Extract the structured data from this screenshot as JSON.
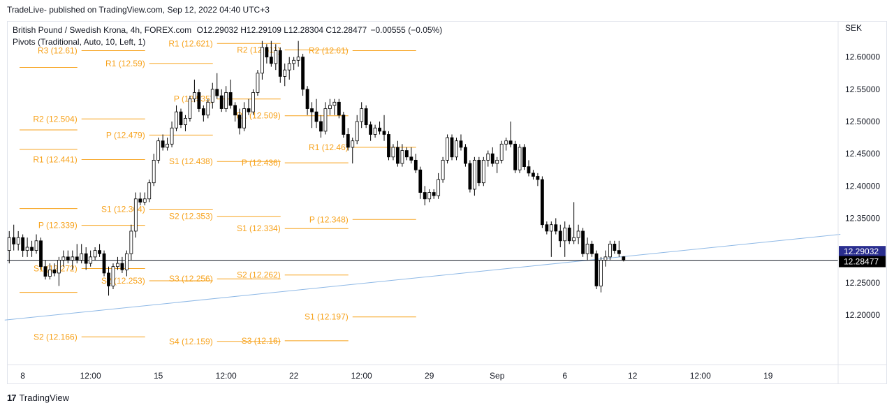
{
  "header": {
    "published": "TradeLive- published on TradingView.com, Sep 12, 2022 04:40 UTC+3"
  },
  "legend": {
    "symbol": "British Pound / Swedish Krona, 4h, FOREX.com",
    "open_label": "O",
    "open": "12.29032",
    "high_label": "H",
    "high": "12.29109",
    "low_label": "L",
    "low": "12.28304",
    "close_label": "C",
    "close": "12.28477",
    "change": "−0.00555 (−0.05%)",
    "indicator": "Pivots (Traditional, Auto, 10, Left, 1)"
  },
  "footer": {
    "brand": "TradingView",
    "brand_mark": "17"
  },
  "colors": {
    "pivot": "#f7a21b",
    "trend": "#8fb9e6",
    "price_line": "#131722",
    "badge_current": "#2a2e8f",
    "badge_close": "#000000",
    "candle_up": "#ffffff",
    "candle_down": "#000000"
  },
  "chart_data": {
    "type": "candlestick",
    "currency_label": "SEK",
    "ylim": [
      12.123,
      12.656
    ],
    "y_ticks": [
      "12.60000",
      "12.55000",
      "12.50000",
      "12.45000",
      "12.40000",
      "12.35000",
      "12.30000",
      "12.25000",
      "12.20000"
    ],
    "y_tick_values": [
      12.6,
      12.55,
      12.5,
      12.45,
      12.4,
      12.35,
      12.3,
      12.25,
      12.2
    ],
    "x_ticks": [
      {
        "label": "8",
        "bar": 3
      },
      {
        "label": "12:00",
        "bar": 18
      },
      {
        "label": "15",
        "bar": 33
      },
      {
        "label": "12:00",
        "bar": 48
      },
      {
        "label": "22",
        "bar": 63
      },
      {
        "label": "12:00",
        "bar": 78
      },
      {
        "label": "29",
        "bar": 93
      },
      {
        "label": "Sep",
        "bar": 108
      },
      {
        "label": "6",
        "bar": 123
      },
      {
        "label": "12",
        "bar": 138
      },
      {
        "label": "12:00",
        "bar": 153
      },
      {
        "label": "19",
        "bar": 168
      }
    ],
    "bar_count_visible": 184,
    "current_price": 12.29032,
    "current_price_label": "12.29032",
    "last_close": 12.28477,
    "last_close_label": "12.28477",
    "trendline": {
      "from": [
        -1,
        12.192
      ],
      "to": [
        184,
        12.325
      ]
    },
    "pivot_periods": [
      {
        "start": -1,
        "end": 16,
        "levels": [
          {
            "name": "",
            "value": 12.584,
            "label": ""
          },
          {
            "name": "",
            "value": 12.487,
            "label": ""
          },
          {
            "name": "",
            "value": 12.457,
            "label": ""
          },
          {
            "name": "",
            "value": 12.365,
            "label": ""
          },
          {
            "name": "",
            "value": 12.235,
            "label": ""
          }
        ]
      },
      {
        "start": 16,
        "end": 31,
        "levels": [
          {
            "name": "S2",
            "value": 12.166,
            "label": "S2 (12.166)"
          },
          {
            "name": "S1",
            "value": 12.272,
            "label": "S1 (12.272)"
          },
          {
            "name": "P",
            "value": 12.339,
            "label": "P (12.339)"
          },
          {
            "name": "R1",
            "value": 12.441,
            "label": "R1 (12.441)"
          },
          {
            "name": "R2",
            "value": 12.504,
            "label": "R2 (12.504)"
          },
          {
            "name": "R3",
            "value": 12.61,
            "label": "R3 (12.61)"
          }
        ]
      },
      {
        "start": 31,
        "end": 46,
        "levels": [
          {
            "name": "S2",
            "value": 12.253,
            "label": "S2 (12.253)"
          },
          {
            "name": "S1",
            "value": 12.364,
            "label": "S1 (12.364)"
          },
          {
            "name": "P",
            "value": 12.479,
            "label": "P (12.479)"
          },
          {
            "name": "R1",
            "value": 12.59,
            "label": "R1 (12.59)"
          }
        ]
      },
      {
        "start": 46,
        "end": 61,
        "levels": [
          {
            "name": "S4",
            "value": 12.159,
            "label": "S4 (12.159)"
          },
          {
            "name": "S3",
            "value": 12.256,
            "label": "S3 (12.256)"
          },
          {
            "name": "S2",
            "value": 12.353,
            "label": "S2 (12.353)"
          },
          {
            "name": "S1",
            "value": 12.438,
            "label": "S1 (12.438)"
          },
          {
            "name": "P",
            "value": 12.535,
            "label": "P (12.535)"
          },
          {
            "name": "R1",
            "value": 12.621,
            "label": "R1 (12.621)"
          }
        ]
      },
      {
        "start": 61,
        "end": 76,
        "levels": [
          {
            "name": "S3",
            "value": 12.16,
            "label": "S3 (12.16)"
          },
          {
            "name": "S2",
            "value": 12.262,
            "label": "S2 (12.262)"
          },
          {
            "name": "S1",
            "value": 12.334,
            "label": "S1 (12.334)"
          },
          {
            "name": "P",
            "value": 12.436,
            "label": "P (12.436)"
          },
          {
            "name": "R1",
            "value": 12.509,
            "label": "R1 (12.509)"
          },
          {
            "name": "R2",
            "value": 12.611,
            "label": "R2 (12.611)"
          }
        ]
      },
      {
        "start": 76,
        "end": 91,
        "levels": [
          {
            "name": "S1",
            "value": 12.197,
            "label": "S1 (12.197)"
          },
          {
            "name": "P",
            "value": 12.348,
            "label": "P (12.348)"
          },
          {
            "name": "R1",
            "value": 12.46,
            "label": "R1 (12.46)"
          },
          {
            "name": "R2",
            "value": 12.61,
            "label": "R2 (12.61)"
          }
        ]
      }
    ],
    "candles": [
      {
        "o": 12.3,
        "h": 12.33,
        "l": 12.28,
        "c": 12.32
      },
      {
        "o": 12.32,
        "h": 12.34,
        "l": 12.3,
        "c": 12.31
      },
      {
        "o": 12.31,
        "h": 12.33,
        "l": 12.3,
        "c": 12.32
      },
      {
        "o": 12.32,
        "h": 12.325,
        "l": 12.29,
        "c": 12.3
      },
      {
        "o": 12.3,
        "h": 12.32,
        "l": 12.29,
        "c": 12.305
      },
      {
        "o": 12.305,
        "h": 12.315,
        "l": 12.29,
        "c": 12.3
      },
      {
        "o": 12.3,
        "h": 12.325,
        "l": 12.295,
        "c": 12.315
      },
      {
        "o": 12.315,
        "h": 12.32,
        "l": 12.27,
        "c": 12.275
      },
      {
        "o": 12.275,
        "h": 12.285,
        "l": 12.255,
        "c": 12.26
      },
      {
        "o": 12.26,
        "h": 12.28,
        "l": 12.255,
        "c": 12.27
      },
      {
        "o": 12.27,
        "h": 12.28,
        "l": 12.26,
        "c": 12.265
      },
      {
        "o": 12.265,
        "h": 12.29,
        "l": 12.245,
        "c": 12.285
      },
      {
        "o": 12.285,
        "h": 12.3,
        "l": 12.275,
        "c": 12.29
      },
      {
        "o": 12.29,
        "h": 12.3,
        "l": 12.28,
        "c": 12.285
      },
      {
        "o": 12.285,
        "h": 12.3,
        "l": 12.27,
        "c": 12.29
      },
      {
        "o": 12.29,
        "h": 12.31,
        "l": 12.28,
        "c": 12.285
      },
      {
        "o": 12.285,
        "h": 12.31,
        "l": 12.28,
        "c": 12.295
      },
      {
        "o": 12.295,
        "h": 12.305,
        "l": 12.27,
        "c": 12.28
      },
      {
        "o": 12.28,
        "h": 12.3,
        "l": 12.275,
        "c": 12.29
      },
      {
        "o": 12.29,
        "h": 12.305,
        "l": 12.285,
        "c": 12.3
      },
      {
        "o": 12.3,
        "h": 12.31,
        "l": 12.29,
        "c": 12.295
      },
      {
        "o": 12.295,
        "h": 12.3,
        "l": 12.26,
        "c": 12.265
      },
      {
        "o": 12.265,
        "h": 12.275,
        "l": 12.23,
        "c": 12.245
      },
      {
        "o": 12.245,
        "h": 12.28,
        "l": 12.24,
        "c": 12.275
      },
      {
        "o": 12.275,
        "h": 12.29,
        "l": 12.27,
        "c": 12.28
      },
      {
        "o": 12.28,
        "h": 12.29,
        "l": 12.265,
        "c": 12.27
      },
      {
        "o": 12.27,
        "h": 12.3,
        "l": 12.26,
        "c": 12.295
      },
      {
        "o": 12.295,
        "h": 12.34,
        "l": 12.285,
        "c": 12.33
      },
      {
        "o": 12.33,
        "h": 12.39,
        "l": 12.32,
        "c": 12.38
      },
      {
        "o": 12.38,
        "h": 12.39,
        "l": 12.37,
        "c": 12.375
      },
      {
        "o": 12.375,
        "h": 12.39,
        "l": 12.37,
        "c": 12.38
      },
      {
        "o": 12.38,
        "h": 12.41,
        "l": 12.375,
        "c": 12.405
      },
      {
        "o": 12.405,
        "h": 12.45,
        "l": 12.4,
        "c": 12.44
      },
      {
        "o": 12.44,
        "h": 12.475,
        "l": 12.435,
        "c": 12.47
      },
      {
        "o": 12.47,
        "h": 12.48,
        "l": 12.455,
        "c": 12.46
      },
      {
        "o": 12.46,
        "h": 12.475,
        "l": 12.455,
        "c": 12.465
      },
      {
        "o": 12.465,
        "h": 12.5,
        "l": 12.46,
        "c": 12.49
      },
      {
        "o": 12.49,
        "h": 12.525,
        "l": 12.485,
        "c": 12.515
      },
      {
        "o": 12.515,
        "h": 12.52,
        "l": 12.49,
        "c": 12.495
      },
      {
        "o": 12.495,
        "h": 12.51,
        "l": 12.485,
        "c": 12.505
      },
      {
        "o": 12.505,
        "h": 12.54,
        "l": 12.5,
        "c": 12.535
      },
      {
        "o": 12.535,
        "h": 12.565,
        "l": 12.53,
        "c": 12.545
      },
      {
        "o": 12.545,
        "h": 12.55,
        "l": 12.515,
        "c": 12.52
      },
      {
        "o": 12.52,
        "h": 12.525,
        "l": 12.5,
        "c": 12.51
      },
      {
        "o": 12.51,
        "h": 12.535,
        "l": 12.505,
        "c": 12.53
      },
      {
        "o": 12.53,
        "h": 12.56,
        "l": 12.52,
        "c": 12.55
      },
      {
        "o": 12.55,
        "h": 12.575,
        "l": 12.535,
        "c": 12.54
      },
      {
        "o": 12.54,
        "h": 12.55,
        "l": 12.515,
        "c": 12.52
      },
      {
        "o": 12.52,
        "h": 12.555,
        "l": 12.515,
        "c": 12.545
      },
      {
        "o": 12.545,
        "h": 12.565,
        "l": 12.52,
        "c": 12.525
      },
      {
        "o": 12.525,
        "h": 12.53,
        "l": 12.5,
        "c": 12.51
      },
      {
        "o": 12.51,
        "h": 12.52,
        "l": 12.48,
        "c": 12.49
      },
      {
        "o": 12.49,
        "h": 12.53,
        "l": 12.485,
        "c": 12.52
      },
      {
        "o": 12.52,
        "h": 12.535,
        "l": 12.51,
        "c": 12.515
      },
      {
        "o": 12.515,
        "h": 12.55,
        "l": 12.51,
        "c": 12.545
      },
      {
        "o": 12.545,
        "h": 12.58,
        "l": 12.54,
        "c": 12.575
      },
      {
        "o": 12.575,
        "h": 12.625,
        "l": 12.565,
        "c": 12.615
      },
      {
        "o": 12.615,
        "h": 12.62,
        "l": 12.59,
        "c": 12.6
      },
      {
        "o": 12.6,
        "h": 12.625,
        "l": 12.585,
        "c": 12.59
      },
      {
        "o": 12.59,
        "h": 12.62,
        "l": 12.58,
        "c": 12.61
      },
      {
        "o": 12.61,
        "h": 12.615,
        "l": 12.56,
        "c": 12.57
      },
      {
        "o": 12.57,
        "h": 12.59,
        "l": 12.555,
        "c": 12.58
      },
      {
        "o": 12.58,
        "h": 12.6,
        "l": 12.565,
        "c": 12.59
      },
      {
        "o": 12.59,
        "h": 12.6,
        "l": 12.58,
        "c": 12.595
      },
      {
        "o": 12.595,
        "h": 12.625,
        "l": 12.585,
        "c": 12.6
      },
      {
        "o": 12.6,
        "h": 12.605,
        "l": 12.54,
        "c": 12.55
      },
      {
        "o": 12.55,
        "h": 12.555,
        "l": 12.51,
        "c": 12.52
      },
      {
        "o": 12.52,
        "h": 12.53,
        "l": 12.49,
        "c": 12.515
      },
      {
        "o": 12.515,
        "h": 12.535,
        "l": 12.49,
        "c": 12.5
      },
      {
        "o": 12.5,
        "h": 12.51,
        "l": 12.475,
        "c": 12.485
      },
      {
        "o": 12.485,
        "h": 12.53,
        "l": 12.48,
        "c": 12.52
      },
      {
        "o": 12.52,
        "h": 12.535,
        "l": 12.51,
        "c": 12.525
      },
      {
        "o": 12.525,
        "h": 12.535,
        "l": 12.51,
        "c": 12.53
      },
      {
        "o": 12.53,
        "h": 12.535,
        "l": 12.505,
        "c": 12.51
      },
      {
        "o": 12.51,
        "h": 12.515,
        "l": 12.475,
        "c": 12.48
      },
      {
        "o": 12.48,
        "h": 12.49,
        "l": 12.455,
        "c": 12.46
      },
      {
        "o": 12.46,
        "h": 12.475,
        "l": 12.435,
        "c": 12.47
      },
      {
        "o": 12.47,
        "h": 12.51,
        "l": 12.465,
        "c": 12.5
      },
      {
        "o": 12.5,
        "h": 12.53,
        "l": 12.49,
        "c": 12.52
      },
      {
        "o": 12.52,
        "h": 12.525,
        "l": 12.49,
        "c": 12.495
      },
      {
        "o": 12.495,
        "h": 12.5,
        "l": 12.47,
        "c": 12.48
      },
      {
        "o": 12.48,
        "h": 12.495,
        "l": 12.475,
        "c": 12.49
      },
      {
        "o": 12.49,
        "h": 12.5,
        "l": 12.48,
        "c": 12.485
      },
      {
        "o": 12.485,
        "h": 12.51,
        "l": 12.47,
        "c": 12.48
      },
      {
        "o": 12.48,
        "h": 12.485,
        "l": 12.44,
        "c": 12.445
      },
      {
        "o": 12.445,
        "h": 12.465,
        "l": 12.44,
        "c": 12.46
      },
      {
        "o": 12.46,
        "h": 12.47,
        "l": 12.43,
        "c": 12.435
      },
      {
        "o": 12.435,
        "h": 12.465,
        "l": 12.43,
        "c": 12.455
      },
      {
        "o": 12.455,
        "h": 12.46,
        "l": 12.44,
        "c": 12.445
      },
      {
        "o": 12.445,
        "h": 12.46,
        "l": 12.435,
        "c": 12.44
      },
      {
        "o": 12.44,
        "h": 12.45,
        "l": 12.42,
        "c": 12.425
      },
      {
        "o": 12.425,
        "h": 12.43,
        "l": 12.38,
        "c": 12.39
      },
      {
        "o": 12.39,
        "h": 12.4,
        "l": 12.37,
        "c": 12.38
      },
      {
        "o": 12.38,
        "h": 12.395,
        "l": 12.375,
        "c": 12.39
      },
      {
        "o": 12.39,
        "h": 12.395,
        "l": 12.38,
        "c": 12.385
      },
      {
        "o": 12.385,
        "h": 12.42,
        "l": 12.38,
        "c": 12.41
      },
      {
        "o": 12.41,
        "h": 12.445,
        "l": 12.405,
        "c": 12.44
      },
      {
        "o": 12.44,
        "h": 12.48,
        "l": 12.435,
        "c": 12.475
      },
      {
        "o": 12.475,
        "h": 12.48,
        "l": 12.44,
        "c": 12.445
      },
      {
        "o": 12.445,
        "h": 12.475,
        "l": 12.44,
        "c": 12.47
      },
      {
        "o": 12.47,
        "h": 12.48,
        "l": 12.455,
        "c": 12.46
      },
      {
        "o": 12.46,
        "h": 12.465,
        "l": 12.43,
        "c": 12.435
      },
      {
        "o": 12.435,
        "h": 12.44,
        "l": 12.39,
        "c": 12.395
      },
      {
        "o": 12.395,
        "h": 12.445,
        "l": 12.385,
        "c": 12.44
      },
      {
        "o": 12.44,
        "h": 12.445,
        "l": 12.4,
        "c": 12.405
      },
      {
        "o": 12.405,
        "h": 12.445,
        "l": 12.4,
        "c": 12.44
      },
      {
        "o": 12.44,
        "h": 12.455,
        "l": 12.43,
        "c": 12.45
      },
      {
        "o": 12.45,
        "h": 12.46,
        "l": 12.43,
        "c": 12.435
      },
      {
        "o": 12.435,
        "h": 12.445,
        "l": 12.42,
        "c": 12.44
      },
      {
        "o": 12.44,
        "h": 12.47,
        "l": 12.435,
        "c": 12.465
      },
      {
        "o": 12.465,
        "h": 12.475,
        "l": 12.455,
        "c": 12.47
      },
      {
        "o": 12.47,
        "h": 12.5,
        "l": 12.46,
        "c": 12.465
      },
      {
        "o": 12.465,
        "h": 12.47,
        "l": 12.42,
        "c": 12.425
      },
      {
        "o": 12.425,
        "h": 12.465,
        "l": 12.42,
        "c": 12.46
      },
      {
        "o": 12.46,
        "h": 12.465,
        "l": 12.425,
        "c": 12.43
      },
      {
        "o": 12.43,
        "h": 12.44,
        "l": 12.415,
        "c": 12.42
      },
      {
        "o": 12.42,
        "h": 12.425,
        "l": 12.41,
        "c": 12.415
      },
      {
        "o": 12.415,
        "h": 12.42,
        "l": 12.4,
        "c": 12.41
      },
      {
        "o": 12.41,
        "h": 12.415,
        "l": 12.335,
        "c": 12.34
      },
      {
        "o": 12.34,
        "h": 12.345,
        "l": 12.325,
        "c": 12.33
      },
      {
        "o": 12.33,
        "h": 12.345,
        "l": 12.29,
        "c": 12.34
      },
      {
        "o": 12.34,
        "h": 12.35,
        "l": 12.325,
        "c": 12.33
      },
      {
        "o": 12.33,
        "h": 12.34,
        "l": 12.305,
        "c": 12.315
      },
      {
        "o": 12.315,
        "h": 12.345,
        "l": 12.29,
        "c": 12.335
      },
      {
        "o": 12.335,
        "h": 12.34,
        "l": 12.31,
        "c": 12.315
      },
      {
        "o": 12.315,
        "h": 12.375,
        "l": 12.31,
        "c": 12.32
      },
      {
        "o": 12.32,
        "h": 12.34,
        "l": 12.31,
        "c": 12.33
      },
      {
        "o": 12.33,
        "h": 12.335,
        "l": 12.29,
        "c": 12.295
      },
      {
        "o": 12.295,
        "h": 12.32,
        "l": 12.285,
        "c": 12.31
      },
      {
        "o": 12.31,
        "h": 12.315,
        "l": 12.29,
        "c": 12.295
      },
      {
        "o": 12.295,
        "h": 12.3,
        "l": 12.24,
        "c": 12.245
      },
      {
        "o": 12.245,
        "h": 12.29,
        "l": 12.235,
        "c": 12.285
      },
      {
        "o": 12.285,
        "h": 12.3,
        "l": 12.275,
        "c": 12.29
      },
      {
        "o": 12.29,
        "h": 12.315,
        "l": 12.285,
        "c": 12.31
      },
      {
        "o": 12.31,
        "h": 12.315,
        "l": 12.295,
        "c": 12.3
      },
      {
        "o": 12.3,
        "h": 12.315,
        "l": 12.29,
        "c": 12.295
      },
      {
        "o": 12.29032,
        "h": 12.29109,
        "l": 12.28304,
        "c": 12.28477
      }
    ]
  }
}
